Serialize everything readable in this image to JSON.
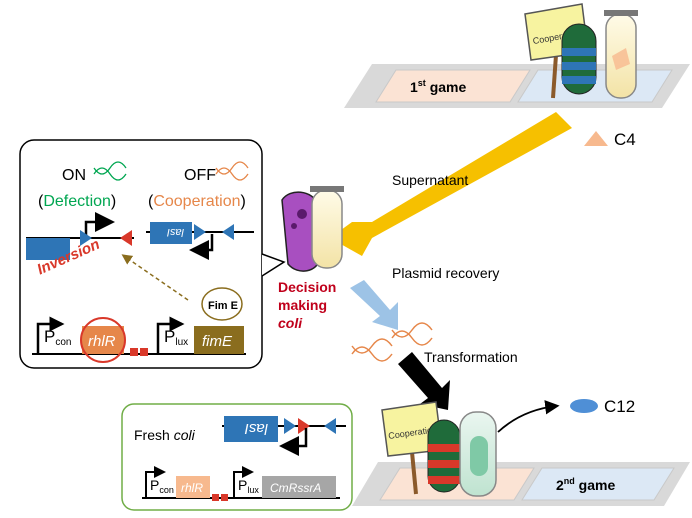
{
  "game1": {
    "label": "1",
    "sup": "st",
    "suffix": " game"
  },
  "game2": {
    "label": "2",
    "sup": "nd",
    "suffix": " game"
  },
  "sign_text": "Cooperation",
  "c4_label": "C4",
  "c12_label": "C12",
  "arrows": {
    "supernatant": "Supernatant",
    "plasmid_recovery": "Plasmid recovery",
    "transformation": "Transformation"
  },
  "decision": {
    "line1": "Decision",
    "line2": "making",
    "line3": "coli"
  },
  "inset": {
    "on_label": "ON",
    "on_state": "Defection",
    "off_label": "OFF",
    "off_state": "Cooperation",
    "inversion": "Inversion",
    "lasI": "lasI",
    "fimE_protein": "Fim E",
    "pcon_p": "P",
    "pcon_sub": "con",
    "plux_p": "P",
    "plux_sub": "lux",
    "rhlR": "rhlR",
    "fimE_gene": "fimE"
  },
  "fresh": {
    "title": "Fresh ",
    "title_italic": "coli",
    "lasI": "lasI",
    "pcon_p": "P",
    "pcon_sub": "con",
    "plux_p": "P",
    "plux_sub": "lux",
    "rhlR": "rhlR",
    "gene": "CmRssrA"
  },
  "colors": {
    "defection_green": "#00a651",
    "cooperation_orange": "#e6874a",
    "decision_red": "#c0001b",
    "lasI_blue": "#2e75b6",
    "fimE_olive": "#8a6d1e",
    "rhlR_red": "#d9382a",
    "arrow_yellow": "#f6c000",
    "arrow_lightblue": "#9dc3e6",
    "c4_peach": "#f7b98e",
    "c12_blue": "#4f8fd6"
  }
}
